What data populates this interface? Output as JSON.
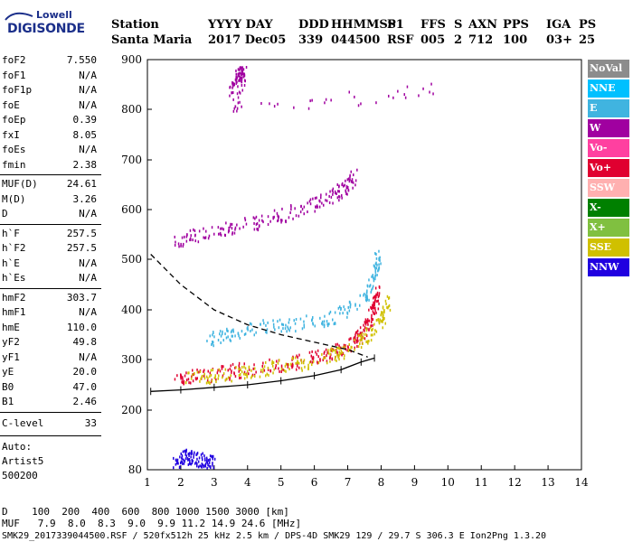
{
  "logo": {
    "line1": "Lowell",
    "line2": "DIGISONDE"
  },
  "header": {
    "cols": [
      {
        "label": "Station",
        "value": "Santa Maria"
      },
      {
        "label": "YYYY DAY",
        "value": "2017 Dec05"
      },
      {
        "label": "DDD",
        "value": "339"
      },
      {
        "label": "HHMMSS",
        "value": "044500"
      },
      {
        "label": "P1",
        "value": "RSF"
      },
      {
        "label": "FFS",
        "value": "005"
      },
      {
        "label": "S",
        "value": "2"
      },
      {
        "label": "AXN",
        "value": "712"
      },
      {
        "label": "PPS",
        "value": "100"
      },
      {
        "label": "IGA",
        "value": "03+"
      },
      {
        "label": "PS",
        "value": "25"
      }
    ]
  },
  "params": {
    "group1": [
      {
        "k": "foF2",
        "v": "7.550"
      },
      {
        "k": "foF1",
        "v": "N/A"
      },
      {
        "k": "foF1p",
        "v": "N/A"
      },
      {
        "k": "foE",
        "v": "N/A"
      },
      {
        "k": "foEp",
        "v": "0.39"
      },
      {
        "k": "fxI",
        "v": "8.05"
      },
      {
        "k": "foEs",
        "v": "N/A"
      },
      {
        "k": "fmin",
        "v": "2.38"
      }
    ],
    "group2": [
      {
        "k": "MUF(D)",
        "v": "24.61"
      },
      {
        "k": "M(D)",
        "v": "3.26"
      },
      {
        "k": "D",
        "v": "N/A"
      }
    ],
    "group3": [
      {
        "k": "h`F",
        "v": "257.5"
      },
      {
        "k": "h`F2",
        "v": "257.5"
      },
      {
        "k": "h`E",
        "v": "N/A"
      },
      {
        "k": "h`Es",
        "v": "N/A"
      }
    ],
    "group4": [
      {
        "k": "hmF2",
        "v": "303.7"
      },
      {
        "k": "hmF1",
        "v": "N/A"
      },
      {
        "k": "hmE",
        "v": "110.0"
      },
      {
        "k": "yF2",
        "v": "49.8"
      },
      {
        "k": "yF1",
        "v": "N/A"
      },
      {
        "k": "yE",
        "v": "20.0"
      },
      {
        "k": "B0",
        "v": "47.0"
      },
      {
        "k": "B1",
        "v": "2.46"
      }
    ],
    "clevel": {
      "k": "C-level",
      "v": "33"
    },
    "auto": [
      "Auto:",
      "Artist5",
      "500200"
    ]
  },
  "bottom": {
    "d_line": "D    100  200  400  600  800 1000 1500 3000 [km]",
    "muf_line": "MUF   7.9  8.0  8.3  9.0  9.9 11.2 14.9 24.6 [MHz]",
    "footer": "SMK29_2017339044500.RSF / 520fx512h 25 kHz 2.5 km / DPS-4D SMK29 129 / 29.7 S 306.3 E Ion2Png 1.3.20"
  },
  "legend": [
    {
      "label": "NoVal",
      "color": "#8c8c8c"
    },
    {
      "label": "NNE",
      "color": "#00c0ff"
    },
    {
      "label": "E",
      "color": "#40b4e0"
    },
    {
      "label": "W",
      "color": "#a000a0"
    },
    {
      "label": "Vo-",
      "color": "#ff40a0"
    },
    {
      "label": "Vo+",
      "color": "#e00030"
    },
    {
      "label": "SSW",
      "color": "#ffb0b0"
    },
    {
      "label": "X-",
      "color": "#008000"
    },
    {
      "label": "X+",
      "color": "#80c040"
    },
    {
      "label": "SSE",
      "color": "#d0c000"
    },
    {
      "label": "NNW",
      "color": "#2000e0"
    }
  ],
  "chart_data": {
    "type": "scatter",
    "xlim": [
      1,
      14
    ],
    "ylim": [
      80,
      900
    ],
    "x_ticks": [
      1,
      2,
      3,
      4,
      5,
      6,
      7,
      8,
      9,
      10,
      11,
      12,
      13,
      14
    ],
    "y_ticks": [
      80,
      200,
      300,
      400,
      500,
      600,
      700,
      800,
      900
    ],
    "traces": [
      {
        "name": "o-trace",
        "color": "#e00030",
        "points": [
          [
            1.8,
            265
          ],
          [
            2.5,
            270
          ],
          [
            3.5,
            278
          ],
          [
            4.5,
            287
          ],
          [
            5.5,
            298
          ],
          [
            6.3,
            310
          ],
          [
            6.9,
            325
          ],
          [
            7.3,
            345
          ],
          [
            7.6,
            375
          ],
          [
            7.8,
            410
          ],
          [
            7.9,
            440
          ]
        ]
      },
      {
        "name": "x-trace",
        "color": "#d0c000",
        "points": [
          [
            2.2,
            262
          ],
          [
            3.0,
            268
          ],
          [
            4.0,
            278
          ],
          [
            5.0,
            288
          ],
          [
            6.0,
            300
          ],
          [
            6.8,
            318
          ],
          [
            7.5,
            345
          ],
          [
            8.0,
            380
          ],
          [
            8.2,
            420
          ]
        ]
      },
      {
        "name": "second-hop",
        "color": "#a000a0",
        "points": [
          [
            1.8,
            540
          ],
          [
            2.5,
            550
          ],
          [
            3.5,
            565
          ],
          [
            4.5,
            580
          ],
          [
            5.5,
            600
          ],
          [
            6.3,
            620
          ],
          [
            6.9,
            645
          ],
          [
            7.2,
            670
          ]
        ]
      },
      {
        "name": "scatter-cyan",
        "color": "#40b4e0",
        "points": [
          [
            2.8,
            340
          ],
          [
            3.5,
            355
          ],
          [
            4.5,
            370
          ],
          [
            5.5,
            375
          ],
          [
            6.5,
            385
          ],
          [
            7.5,
            420
          ],
          [
            7.8,
            470
          ],
          [
            7.9,
            510
          ]
        ]
      },
      {
        "name": "es-low",
        "color": "#2000e0",
        "points": [
          [
            1.8,
            95
          ],
          [
            2.1,
            110
          ],
          [
            2.4,
            105
          ],
          [
            2.7,
            100
          ],
          [
            3.0,
            98
          ]
        ]
      },
      {
        "name": "top-spread",
        "color": "#a000a0",
        "points": [
          [
            3.5,
            840
          ],
          [
            3.7,
            870
          ],
          [
            3.9,
            880
          ],
          [
            3.6,
            800
          ],
          [
            9.6,
            840
          ]
        ]
      }
    ],
    "profile_dashed": [
      [
        1.1,
        510
      ],
      [
        2.0,
        450
      ],
      [
        3.0,
        400
      ],
      [
        4.0,
        370
      ],
      [
        5.0,
        350
      ],
      [
        6.0,
        335
      ],
      [
        7.0,
        320
      ],
      [
        7.6,
        305
      ]
    ],
    "profile_solid": [
      [
        1.1,
        237
      ],
      [
        2.0,
        240
      ],
      [
        3.0,
        245
      ],
      [
        4.0,
        250
      ],
      [
        5.0,
        258
      ],
      [
        6.0,
        268
      ],
      [
        6.8,
        280
      ],
      [
        7.4,
        295
      ],
      [
        7.8,
        303
      ]
    ]
  }
}
